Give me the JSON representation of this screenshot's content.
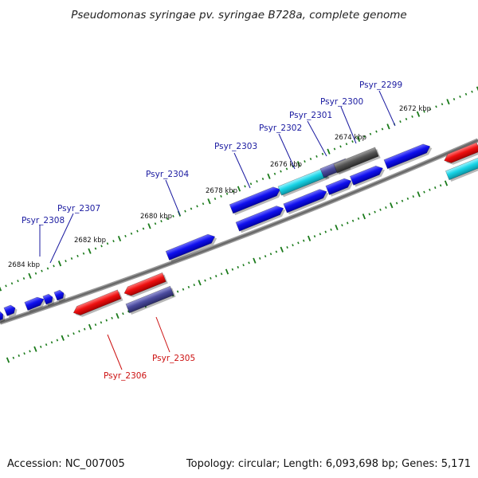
{
  "title": "Pseudomonas syringae pv. syringae B728a, complete genome",
  "footer": {
    "accession": "Accession: NC_007005",
    "summary": "Topology: circular; Length: 6,093,698 bp; Genes: 5,171"
  },
  "colors": {
    "forward_gene": "#1010ee",
    "reverse_gene": "#ee1010",
    "forward_label": "#1a1aa0",
    "reverse_label": "#cc1111",
    "backbone": "#777777",
    "tick": "#1a7a1a",
    "highlight_cyan": "#19d4e6",
    "highlight_gray": "#555555",
    "highlight_slate": "#4b4b9e"
  },
  "scale_labels": [
    "2684 kbp",
    "2682 kbp",
    "2680 kbp",
    "2678 kbp",
    "2676 kbp",
    "2674 kbp",
    "2672 kbp"
  ],
  "gene_labels": {
    "forward": [
      "Psyr_2308",
      "Psyr_2307",
      "Psyr_2304",
      "Psyr_2303",
      "Psyr_2302",
      "Psyr_2301",
      "Psyr_2300",
      "Psyr_2299"
    ],
    "reverse": [
      "Psyr_2306",
      "Psyr_2305"
    ]
  }
}
